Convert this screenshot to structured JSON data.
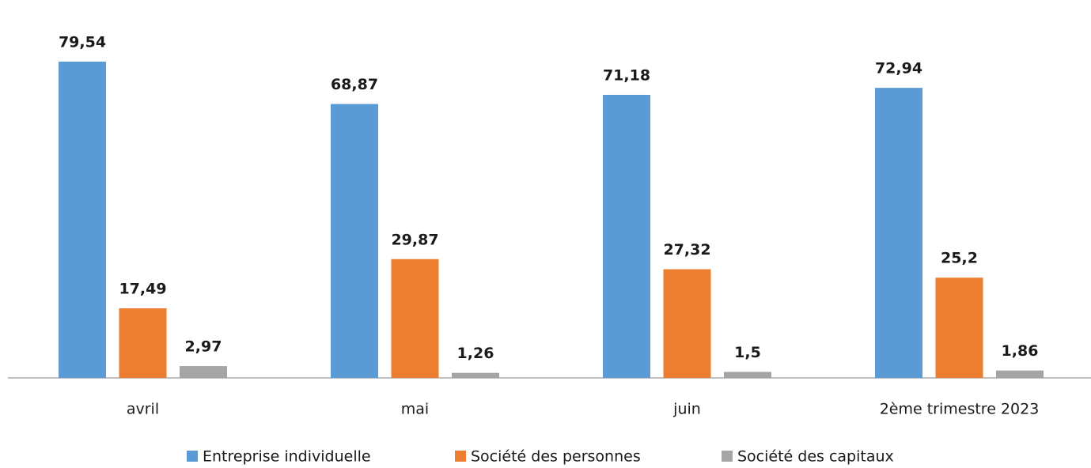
{
  "chart_data": {
    "type": "bar",
    "categories": [
      "avril",
      "mai",
      "juin",
      "2ème trimestre 2023"
    ],
    "series": [
      {
        "name": "Entreprise individuelle",
        "color": "#5b9bd5",
        "values": [
          79.54,
          68.87,
          71.18,
          72.94
        ],
        "value_labels": [
          "79,54",
          "68,87",
          "71,18",
          "72,94"
        ]
      },
      {
        "name": "Société des personnes",
        "color": "#ed7d31",
        "values": [
          17.49,
          29.87,
          27.32,
          25.2
        ],
        "value_labels": [
          "17,49",
          "29,87",
          "27,32",
          "25,2"
        ]
      },
      {
        "name": "Société des capitaux",
        "color": "#a5a5a5",
        "values": [
          2.97,
          1.26,
          1.5,
          1.86
        ],
        "value_labels": [
          "2,97",
          "1,26",
          "1,5",
          "1,86"
        ]
      }
    ],
    "legend": "bottom"
  }
}
